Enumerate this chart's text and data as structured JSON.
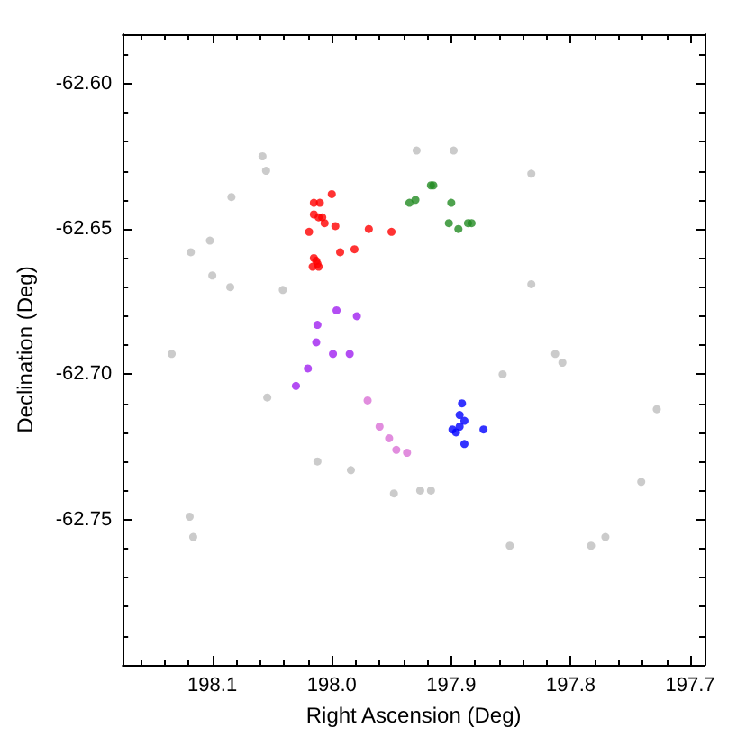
{
  "chart_data": {
    "type": "scatter",
    "xlabel": "Right Ascension (Deg)",
    "ylabel": "Declination (Deg)",
    "xlim": [
      198.175,
      197.688
    ],
    "ylim": [
      -62.8,
      -62.583
    ],
    "xticks": [
      {
        "value": 198.1,
        "label": "198.1"
      },
      {
        "value": 198.0,
        "label": "198.0"
      },
      {
        "value": 197.9,
        "label": "197.9"
      },
      {
        "value": 197.8,
        "label": "197.8"
      },
      {
        "value": 197.7,
        "label": "197.7"
      }
    ],
    "yticks": [
      {
        "value": -62.75,
        "label": "-62.75"
      },
      {
        "value": -62.7,
        "label": "-62.70"
      },
      {
        "value": -62.65,
        "label": "-62.65"
      },
      {
        "value": -62.6,
        "label": "-62.60"
      }
    ],
    "marker": "circle",
    "series": [
      {
        "color": "#bebebe",
        "x": [
          198.058,
          198.055,
          198.084,
          198.118,
          198.102,
          198.1,
          198.085,
          198.041,
          198.134,
          198.054,
          198.012,
          197.984,
          197.948,
          197.926,
          197.917,
          198.119,
          198.116,
          197.929,
          197.898,
          197.833,
          197.833,
          197.813,
          197.807,
          197.857,
          197.728,
          197.741,
          197.851,
          197.783,
          197.771
        ],
        "values": [
          -62.625,
          -62.63,
          -62.639,
          -62.658,
          -62.654,
          -62.666,
          -62.67,
          -62.671,
          -62.693,
          -62.708,
          -62.73,
          -62.733,
          -62.741,
          -62.74,
          -62.74,
          -62.749,
          -62.756,
          -62.623,
          -62.623,
          -62.631,
          -62.669,
          -62.693,
          -62.696,
          -62.7,
          -62.712,
          -62.737,
          -62.759,
          -62.759,
          -62.756
        ]
      },
      {
        "color": "#ff0000",
        "x": [
          198.0,
          198.015,
          198.01,
          198.015,
          198.011,
          198.008,
          198.006,
          198.019,
          197.997,
          197.969,
          197.95,
          197.981,
          197.993,
          198.015,
          198.013,
          198.016,
          198.011,
          198.012
        ],
        "values": [
          -62.638,
          -62.641,
          -62.641,
          -62.645,
          -62.646,
          -62.646,
          -62.648,
          -62.651,
          -62.649,
          -62.65,
          -62.651,
          -62.657,
          -62.658,
          -62.66,
          -62.661,
          -62.663,
          -62.663,
          -62.662
        ]
      },
      {
        "color": "#228b22",
        "x": [
          197.935,
          197.93,
          197.917,
          197.915,
          197.9,
          197.902,
          197.894,
          197.886,
          197.883
        ],
        "values": [
          -62.641,
          -62.64,
          -62.635,
          -62.635,
          -62.641,
          -62.648,
          -62.65,
          -62.648,
          -62.648
        ]
      },
      {
        "color": "#a020f0",
        "x": [
          197.996,
          197.979,
          198.012,
          198.013,
          197.999,
          197.985,
          198.02,
          198.03
        ],
        "values": [
          -62.678,
          -62.68,
          -62.683,
          -62.689,
          -62.693,
          -62.693,
          -62.698,
          -62.704
        ]
      },
      {
        "color": "#da70d6",
        "x": [
          197.97,
          197.96,
          197.952,
          197.946,
          197.937
        ],
        "values": [
          -62.709,
          -62.718,
          -62.722,
          -62.726,
          -62.727
        ]
      },
      {
        "color": "#0000ff",
        "x": [
          197.891,
          197.893,
          197.889,
          197.899,
          197.893,
          197.896,
          197.873,
          197.889
        ],
        "values": [
          -62.71,
          -62.714,
          -62.716,
          -62.719,
          -62.718,
          -62.72,
          -62.719,
          -62.724
        ]
      }
    ]
  }
}
